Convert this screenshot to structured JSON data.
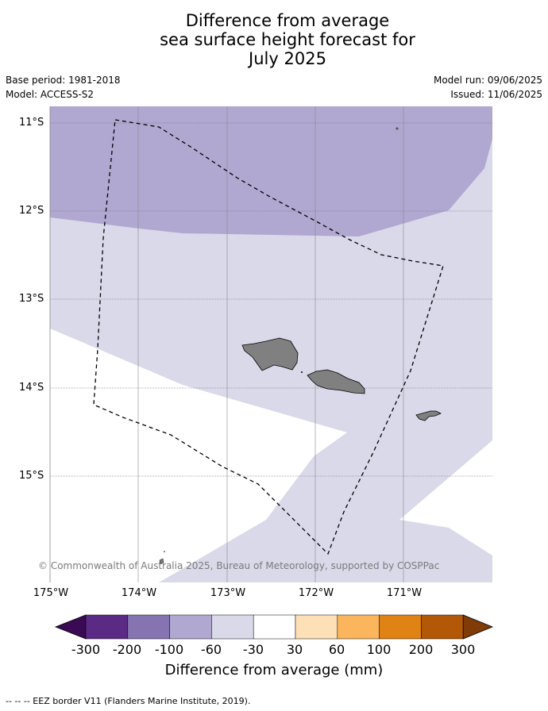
{
  "title": {
    "line1": "Difference from average",
    "line2": "sea surface height forecast for",
    "line3": "July 2025"
  },
  "meta": {
    "base_period": "Base period: 1981-2018",
    "model": "Model: ACCESS-S2",
    "model_run": "Model run: 09/06/2025",
    "issued": "Issued: 11/06/2025"
  },
  "map": {
    "lat_ticks": [
      "11°S",
      "12°S",
      "13°S",
      "14°S",
      "15°S"
    ],
    "lon_ticks": [
      "175°W",
      "174°W",
      "173°W",
      "172°W",
      "171°W"
    ],
    "credit": "© Commonwealth of Australia 2025, Bureau of Meteorology, supported by COSPPac",
    "regions": [
      "-100 to -60 mm",
      "-60 to -30 mm",
      "-30 to 30 mm"
    ]
  },
  "colorbar": {
    "labels": [
      "-300",
      "-200",
      "-100",
      "-60",
      "-30",
      "30",
      "60",
      "100",
      "200",
      "300"
    ],
    "colors": [
      "#3a0b54",
      "#5a2a85",
      "#8574b1",
      "#b0a8d1",
      "#d9d9ea",
      "#ffffff",
      "#fee0b6",
      "#fbb55c",
      "#e08214",
      "#b35806",
      "#7f3b08"
    ],
    "title": "Difference from average (mm)"
  },
  "legend_note": "--  --  -- EEZ border V11 (Flanders Marine Institute, 2019)."
}
